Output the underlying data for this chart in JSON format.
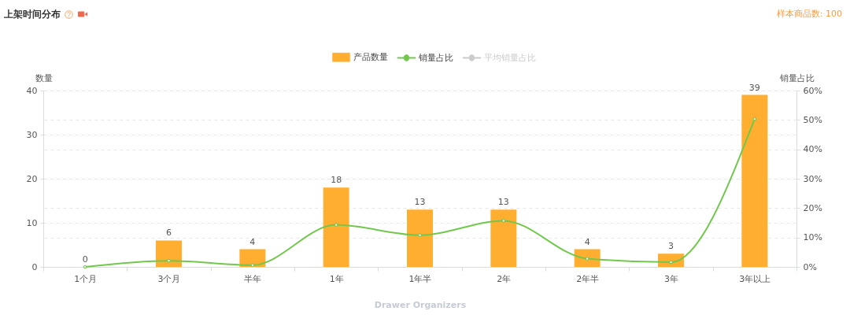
{
  "chart_data": {
    "type": "bar",
    "title": "上架时间分布",
    "annotations": [
      "样本商品数: 100"
    ],
    "xlabel": "Drawer Organizers",
    "ylabel": "数量",
    "y2label": "销量占比",
    "categories": [
      "1个月",
      "3个月",
      "半年",
      "1年",
      "1年半",
      "2年",
      "2年半",
      "3年",
      "3年以上"
    ],
    "series": [
      {
        "name": "产品数量",
        "color": "#ffae2f",
        "values": [
          0,
          6,
          4,
          18,
          13,
          13,
          4,
          3,
          39
        ],
        "value_labels": [
          "0",
          "6",
          "4",
          "18",
          "13",
          "13",
          "4",
          "3",
          "39"
        ]
      },
      {
        "name": "销量占比",
        "type": "line",
        "axis": "y2",
        "color": "#72c84c",
        "values": [
          0,
          2.1,
          0.6,
          14.3,
          10.8,
          15.7,
          2.8,
          1.6,
          50.3
        ]
      },
      {
        "name": "平均销量占比",
        "type": "line",
        "axis": "y2",
        "color": "#cccccc",
        "values": [
          null,
          null,
          null,
          null,
          null,
          null,
          null,
          null,
          null
        ]
      }
    ],
    "ylim": [
      0,
      40
    ],
    "yticks": [
      0,
      10,
      20,
      30,
      40
    ],
    "y2lim": [
      0,
      60
    ],
    "y2ticks": [
      {
        "value": 0,
        "label": "0%"
      },
      {
        "value": 10,
        "label": "10%"
      },
      {
        "value": 20,
        "label": "20%"
      },
      {
        "value": 30,
        "label": "30%"
      },
      {
        "value": 40,
        "label": "40%"
      },
      {
        "value": 50,
        "label": "50%"
      },
      {
        "value": 60,
        "label": "60%"
      }
    ],
    "grid": "y",
    "legend": "top",
    "marker": "circle"
  }
}
